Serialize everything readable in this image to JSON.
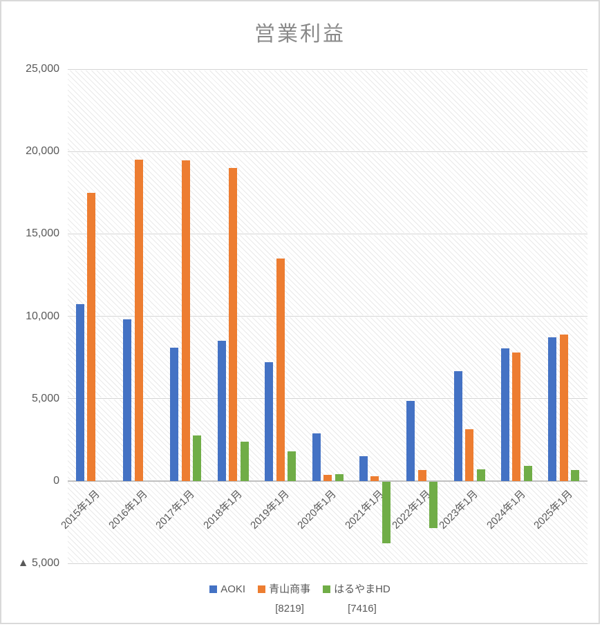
{
  "chart_data": {
    "type": "bar",
    "title": "営業利益",
    "categories": [
      "2015年1月",
      "2016年1月",
      "2017年1月",
      "2018年1月",
      "2019年1月",
      "2020年1月",
      "2021年1月",
      "2022年1月",
      "2023年1月",
      "2024年1月",
      "2025年1月"
    ],
    "series": [
      {
        "name": "AOKI",
        "code": "",
        "color": "#4472C4",
        "values": [
          10750,
          9800,
          8100,
          8500,
          7200,
          2900,
          1500,
          4850,
          6650,
          8050,
          8700
        ]
      },
      {
        "name": "青山商事",
        "code": "[8219]",
        "color": "#ED7D31",
        "values": [
          17500,
          19500,
          19450,
          19000,
          13500,
          350,
          300,
          650,
          3150,
          7800,
          8900
        ]
      },
      {
        "name": "はるやまHD",
        "code": "[7416]",
        "color": "#70AD47",
        "values": [
          null,
          null,
          2750,
          2400,
          1800,
          400,
          -3700,
          -2800,
          700,
          900,
          650
        ]
      }
    ],
    "ylim": [
      -5000,
      25000
    ],
    "ytick_step": 5000,
    "yticks": [
      {
        "value": 25000,
        "label": "25,000"
      },
      {
        "value": 20000,
        "label": "20,000"
      },
      {
        "value": 15000,
        "label": "15,000"
      },
      {
        "value": 10000,
        "label": "10,000"
      },
      {
        "value": 5000,
        "label": "5,000"
      },
      {
        "value": 0,
        "label": "0"
      },
      {
        "value": -5000,
        "label": "▲ 5,000"
      }
    ],
    "grid": true,
    "legend_position": "bottom",
    "xlabel": "",
    "ylabel": ""
  },
  "colors": {
    "axis_text": "#595959",
    "title_text": "#898989",
    "gridline": "#d4d4d4",
    "zero_line": "#bfbfbf",
    "frame_border": "#d9d9d9",
    "plot_hatch": "#e9e9e9"
  }
}
